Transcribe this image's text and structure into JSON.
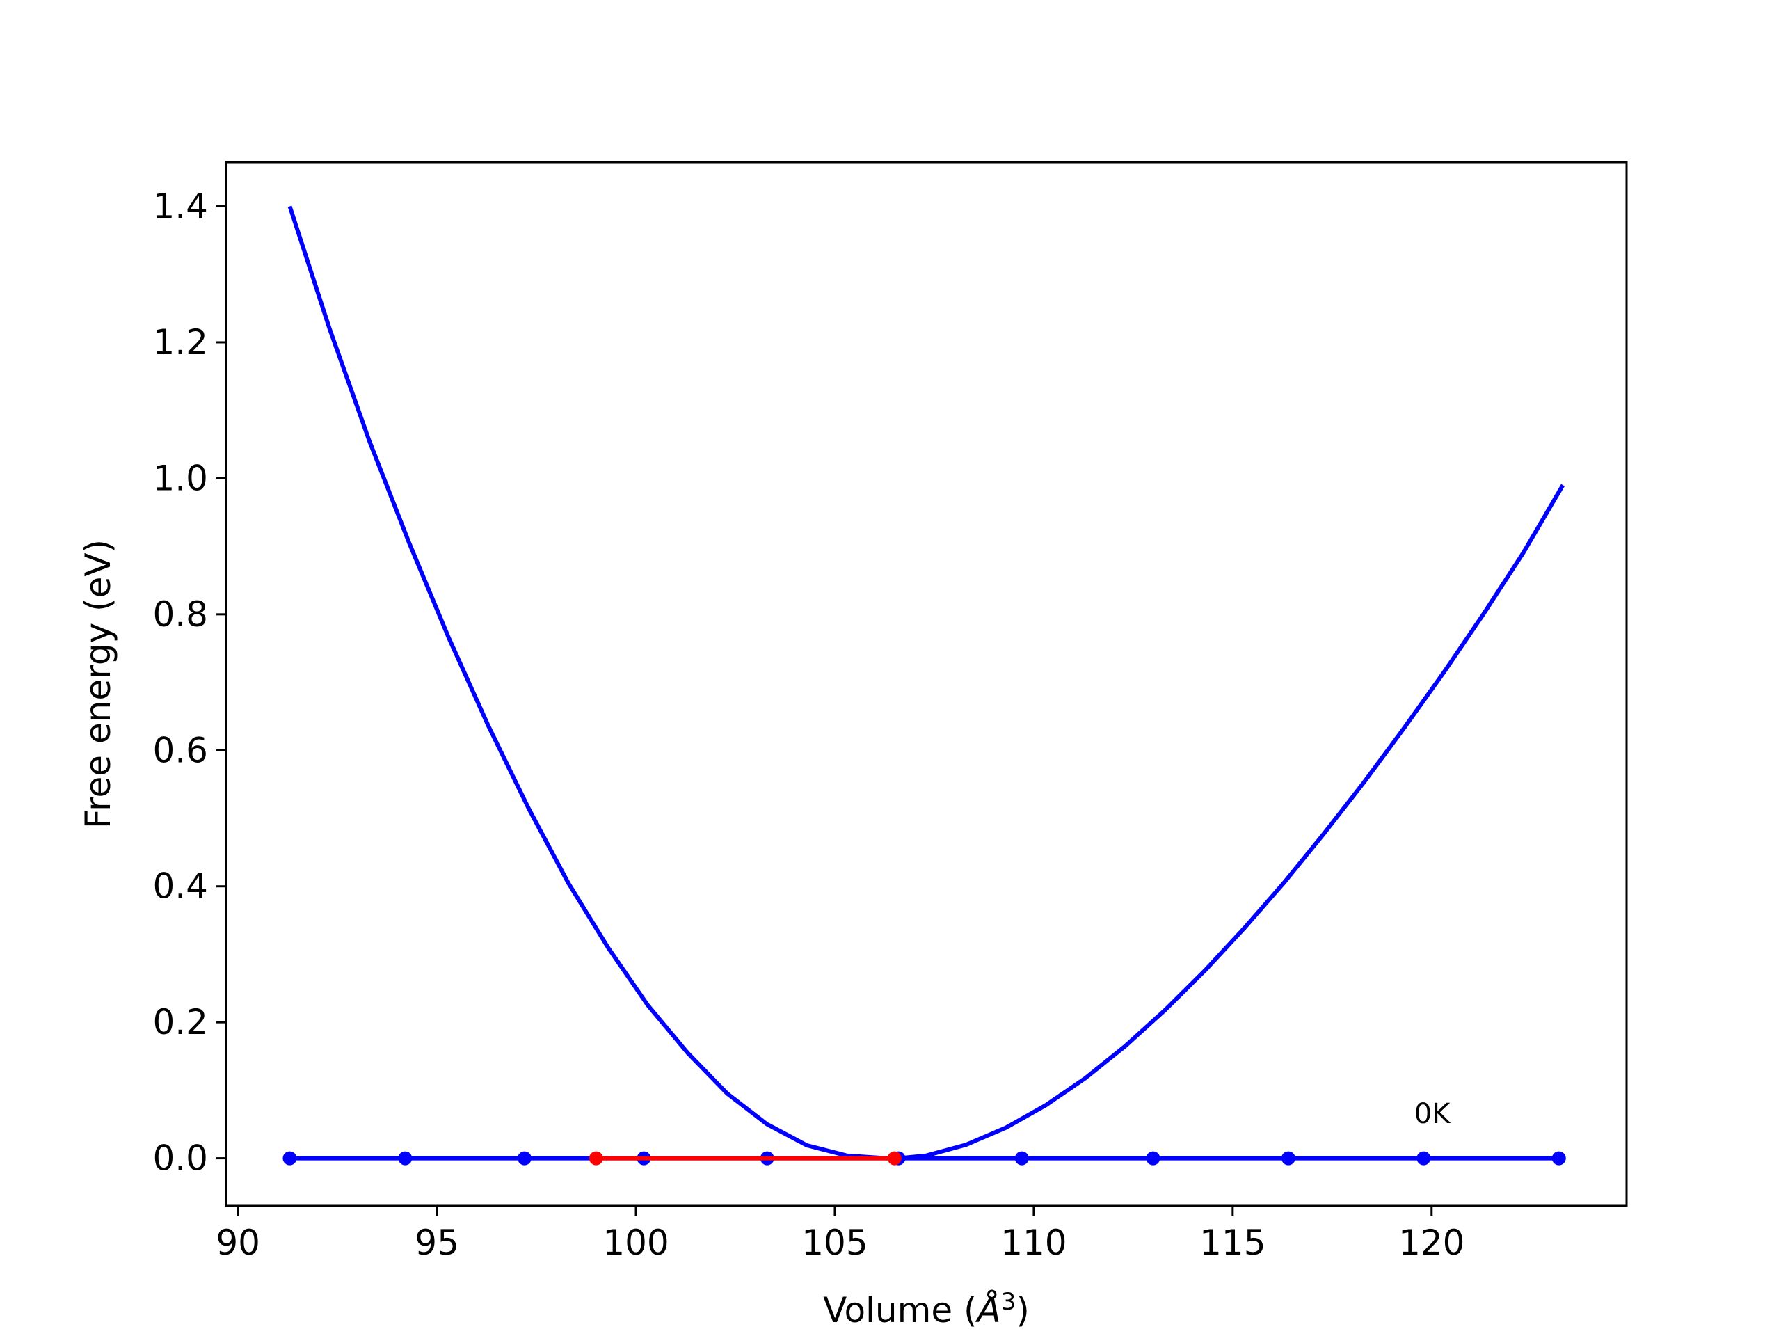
{
  "chart_data": {
    "type": "line",
    "xlabel": "Volume (Å³)",
    "xlabel_parts": {
      "prefix": "Volume (",
      "unit": "Å",
      "exponent": "3",
      "suffix": ")"
    },
    "ylabel": "Free energy (eV)",
    "xlim": [
      89.7,
      124.9
    ],
    "ylim": [
      -0.07,
      1.465
    ],
    "x_ticks": [
      90,
      95,
      100,
      105,
      110,
      115,
      120
    ],
    "x_tick_labels": [
      "90",
      "95",
      "100",
      "105",
      "110",
      "115",
      "120"
    ],
    "y_ticks": [
      0.0,
      0.2,
      0.4,
      0.6,
      0.8,
      1.0,
      1.2,
      1.4
    ],
    "y_tick_labels": [
      "0.0",
      "0.2",
      "0.4",
      "0.6",
      "0.8",
      "1.0",
      "1.2",
      "1.4"
    ],
    "grid": false,
    "annotations": [
      {
        "text": "0K",
        "x": 120.0,
        "y": 0.066
      }
    ],
    "series": [
      {
        "kind": "curve",
        "color": "#0000ff",
        "x": [
          91.3,
          92.3,
          93.3,
          94.3,
          95.3,
          96.3,
          97.3,
          98.3,
          99.3,
          100.3,
          101.3,
          102.3,
          103.3,
          104.3,
          105.3,
          106.3,
          106.6,
          107.3,
          108.3,
          109.3,
          110.3,
          111.3,
          112.3,
          113.3,
          114.3,
          115.3,
          116.3,
          117.3,
          118.3,
          119.3,
          120.3,
          121.3,
          122.3,
          123.3
        ],
        "y": [
          1.4,
          1.22,
          1.055,
          0.905,
          0.765,
          0.635,
          0.515,
          0.405,
          0.31,
          0.225,
          0.155,
          0.095,
          0.05,
          0.019,
          0.004,
          0.0,
          0.0,
          0.004,
          0.02,
          0.045,
          0.078,
          0.118,
          0.165,
          0.218,
          0.276,
          0.339,
          0.406,
          0.478,
          0.553,
          0.632,
          0.714,
          0.8,
          0.89,
          0.99
        ]
      },
      {
        "kind": "line-with-markers",
        "color": "#0000ff",
        "x": [
          91.3,
          94.2,
          97.2,
          100.2,
          103.3,
          106.6,
          109.7,
          113.0,
          116.4,
          119.8,
          123.2
        ],
        "y": [
          0,
          0,
          0,
          0,
          0,
          0,
          0,
          0,
          0,
          0,
          0
        ]
      },
      {
        "kind": "line-with-markers",
        "color": "#ff0000",
        "x": [
          99.0,
          106.5
        ],
        "y": [
          0,
          0
        ]
      }
    ]
  }
}
